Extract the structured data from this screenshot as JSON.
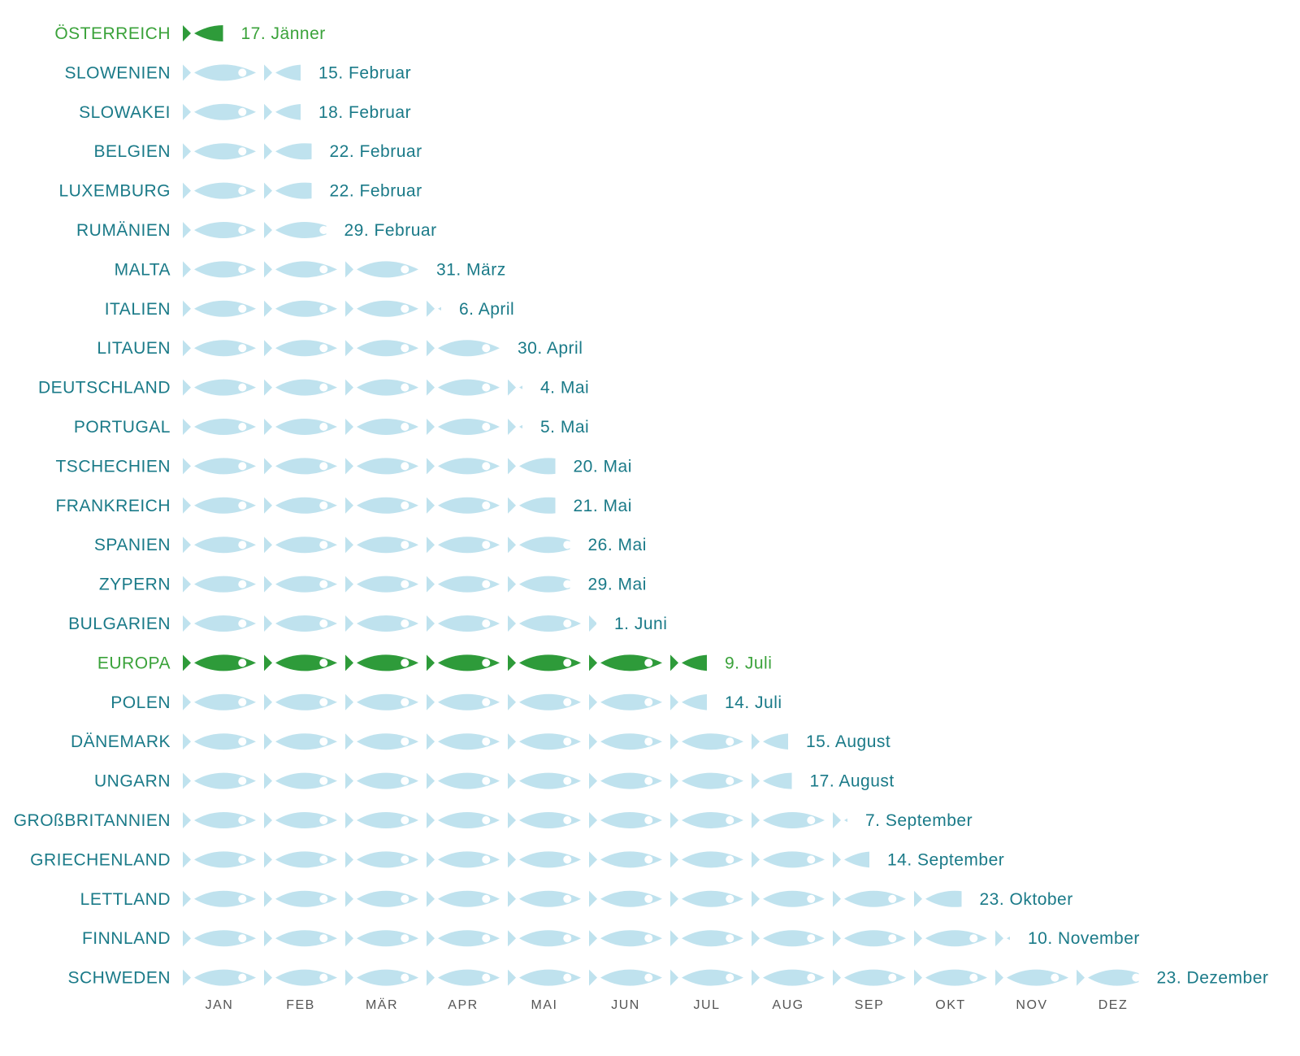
{
  "colors": {
    "fish_normal": "#bfe2ee",
    "fish_highlight": "#2e9b3a",
    "text_normal": "#1a7a88",
    "text_highlight": "#3aa23a",
    "eye": "#ffffff",
    "month_label": "#555555"
  },
  "chart_data": {
    "type": "pictograph",
    "unit": "one fish = one month",
    "months": [
      "JAN",
      "FEB",
      "MÄR",
      "APR",
      "MAI",
      "JUN",
      "JUL",
      "AUG",
      "SEP",
      "OKT",
      "NOV",
      "DEZ"
    ],
    "rows": [
      {
        "country": "ÖSTERREICH",
        "date": "17. Jänner",
        "full_months": 0,
        "partial": 0.55,
        "highlight": true
      },
      {
        "country": "SLOWENIEN",
        "date": "15. Februar",
        "full_months": 1,
        "partial": 0.5,
        "highlight": false
      },
      {
        "country": "SLOWAKEI",
        "date": "18. Februar",
        "full_months": 1,
        "partial": 0.5,
        "highlight": false
      },
      {
        "country": "BELGIEN",
        "date": "22. Februar",
        "full_months": 1,
        "partial": 0.65,
        "highlight": false
      },
      {
        "country": "LUXEMBURG",
        "date": "22. Februar",
        "full_months": 1,
        "partial": 0.65,
        "highlight": false
      },
      {
        "country": "RUMÄNIEN",
        "date": "29. Februar",
        "full_months": 1,
        "partial": 0.85,
        "highlight": false
      },
      {
        "country": "MALTA",
        "date": "31. März",
        "full_months": 3,
        "partial": 0,
        "highlight": false
      },
      {
        "country": "ITALIEN",
        "date": "6. April",
        "full_months": 3,
        "partial": 0.2,
        "highlight": false
      },
      {
        "country": "LITAUEN",
        "date": "30. April",
        "full_months": 4,
        "partial": 0,
        "highlight": false
      },
      {
        "country": "DEUTSCHLAND",
        "date": "4. Mai",
        "full_months": 4,
        "partial": 0.2,
        "highlight": false
      },
      {
        "country": "PORTUGAL",
        "date": "5. Mai",
        "full_months": 4,
        "partial": 0.2,
        "highlight": false
      },
      {
        "country": "TSCHECHIEN",
        "date": "20. Mai",
        "full_months": 4,
        "partial": 0.65,
        "highlight": false
      },
      {
        "country": "FRANKREICH",
        "date": "21. Mai",
        "full_months": 4,
        "partial": 0.65,
        "highlight": false
      },
      {
        "country": "SPANIEN",
        "date": "26. Mai",
        "full_months": 4,
        "partial": 0.85,
        "highlight": false
      },
      {
        "country": "ZYPERN",
        "date": "29. Mai",
        "full_months": 4,
        "partial": 0.85,
        "highlight": false
      },
      {
        "country": "BULGARIEN",
        "date": "1. Juni",
        "full_months": 5,
        "partial": 0.1,
        "highlight": false
      },
      {
        "country": "EUROPA",
        "date": "9. Juli",
        "full_months": 6,
        "partial": 0.5,
        "highlight": true
      },
      {
        "country": "POLEN",
        "date": "14. Juli",
        "full_months": 6,
        "partial": 0.5,
        "highlight": false
      },
      {
        "country": "DÄNEMARK",
        "date": "15. August",
        "full_months": 7,
        "partial": 0.5,
        "highlight": false
      },
      {
        "country": "UNGARN",
        "date": "17. August",
        "full_months": 7,
        "partial": 0.55,
        "highlight": false
      },
      {
        "country": "GROßBRITANNIEN",
        "date": "7. September",
        "full_months": 8,
        "partial": 0.2,
        "highlight": false
      },
      {
        "country": "GRIECHENLAND",
        "date": "14. September",
        "full_months": 8,
        "partial": 0.5,
        "highlight": false
      },
      {
        "country": "LETTLAND",
        "date": "23. Oktober",
        "full_months": 9,
        "partial": 0.65,
        "highlight": false
      },
      {
        "country": "FINNLAND",
        "date": "10. November",
        "full_months": 10,
        "partial": 0.2,
        "highlight": false
      },
      {
        "country": "SCHWEDEN",
        "date": "23. Dezember",
        "full_months": 11,
        "partial": 0.85,
        "highlight": false
      }
    ]
  }
}
